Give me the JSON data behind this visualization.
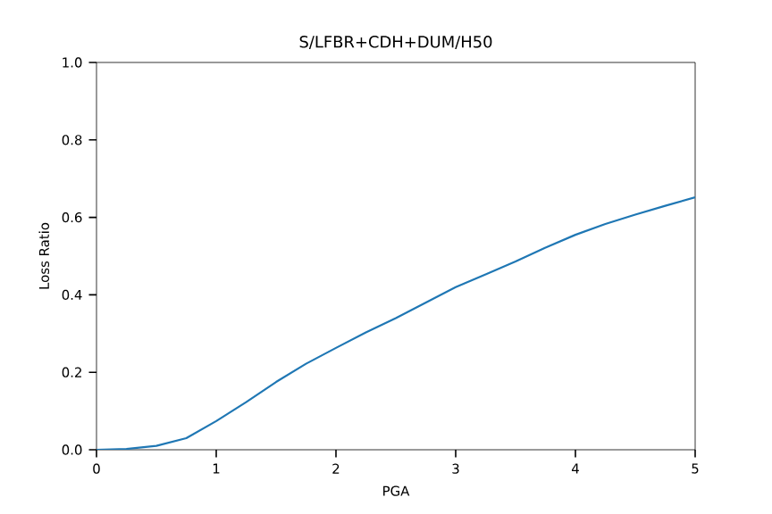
{
  "chart_data": {
    "type": "line",
    "title": "S/LFBR+CDH+DUM/H50",
    "xlabel": "PGA",
    "ylabel": "Loss Ratio",
    "x": [
      0,
      0.25,
      0.5,
      0.75,
      1,
      1.25,
      1.5,
      1.75,
      2,
      2.25,
      2.5,
      2.75,
      3,
      3.25,
      3.5,
      3.75,
      4,
      4.25,
      4.5,
      4.75,
      5
    ],
    "series": [
      {
        "color": "#1f77b4",
        "values": [
          0,
          0.002,
          0.01,
          0.03,
          0.074,
          0.123,
          0.175,
          0.222,
          0.263,
          0.303,
          0.34,
          0.38,
          0.42,
          0.453,
          0.486,
          0.522,
          0.555,
          0.583,
          0.607,
          0.63,
          0.652
        ]
      }
    ],
    "xlim": [
      0,
      5
    ],
    "ylim": [
      0,
      1
    ],
    "xticks": [
      0,
      1,
      2,
      3,
      4,
      5
    ],
    "yticks": [
      {
        "value": 0,
        "label": "0.0"
      },
      0.2,
      0.4,
      0.6,
      0.8,
      {
        "value": 1,
        "label": "1.0"
      }
    ],
    "grid": false
  }
}
